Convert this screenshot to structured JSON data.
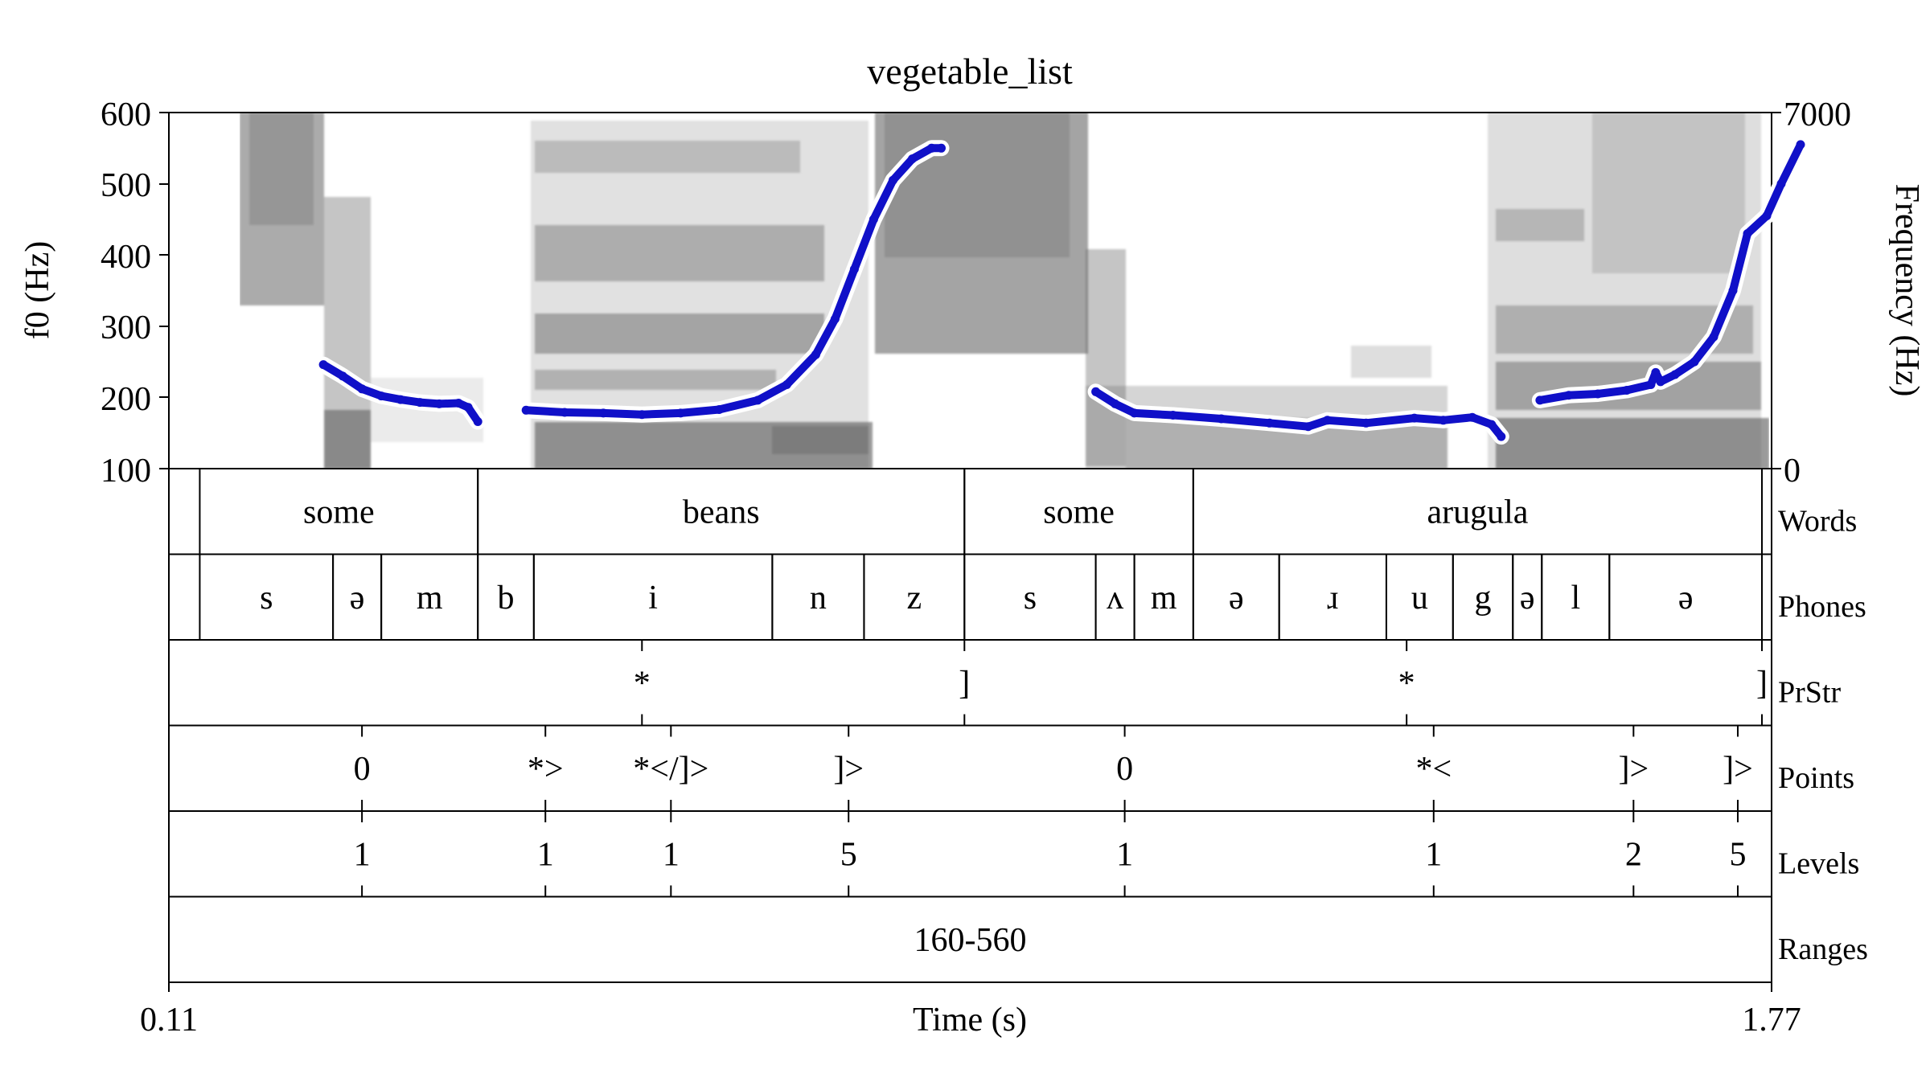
{
  "title": "vegetable_list",
  "left_axis": {
    "label": "f0 (Hz)",
    "min": 100,
    "max": 600,
    "ticks": [
      "100",
      "200",
      "300",
      "400",
      "500",
      "600"
    ]
  },
  "right_axis": {
    "label": "Frequency (Hz)",
    "min": 0,
    "max": 7000,
    "ticks": [
      "0",
      "7000"
    ]
  },
  "x_axis": {
    "label": "Time (s)",
    "start": 0.11,
    "end": 1.77,
    "start_label": "0.11",
    "end_label": "1.77"
  },
  "colors": {
    "f0_line": "#1010c8",
    "f0_halo": "#ffffff",
    "spectrogram": "#000000",
    "frame": "#000000"
  },
  "tiers": [
    {
      "name": "Words",
      "type": "interval",
      "intervals": [
        {
          "label": "some",
          "start": 0.142,
          "end": 0.43
        },
        {
          "label": "beans",
          "start": 0.43,
          "end": 0.934
        },
        {
          "label": "some",
          "start": 0.934,
          "end": 1.171
        },
        {
          "label": "arugula",
          "start": 1.171,
          "end": 1.76
        }
      ]
    },
    {
      "name": "Phones",
      "type": "interval",
      "intervals": [
        {
          "label": "s",
          "start": 0.142,
          "end": 0.28
        },
        {
          "label": "ə",
          "start": 0.28,
          "end": 0.33
        },
        {
          "label": "m",
          "start": 0.33,
          "end": 0.43
        },
        {
          "label": "b",
          "start": 0.43,
          "end": 0.488
        },
        {
          "label": "i",
          "start": 0.488,
          "end": 0.735
        },
        {
          "label": "n",
          "start": 0.735,
          "end": 0.83
        },
        {
          "label": "z",
          "start": 0.83,
          "end": 0.934
        },
        {
          "label": "s",
          "start": 0.934,
          "end": 1.07
        },
        {
          "label": "ʌ",
          "start": 1.07,
          "end": 1.11
        },
        {
          "label": "m",
          "start": 1.11,
          "end": 1.171
        },
        {
          "label": "ə",
          "start": 1.171,
          "end": 1.26
        },
        {
          "label": "ɹ",
          "start": 1.26,
          "end": 1.371
        },
        {
          "label": "u",
          "start": 1.371,
          "end": 1.44
        },
        {
          "label": "g",
          "start": 1.44,
          "end": 1.502
        },
        {
          "label": "ə",
          "start": 1.502,
          "end": 1.532
        },
        {
          "label": "l",
          "start": 1.532,
          "end": 1.602
        },
        {
          "label": "ə",
          "start": 1.602,
          "end": 1.76
        }
      ]
    },
    {
      "name": "PrStr",
      "type": "point",
      "points": [
        {
          "label": "*",
          "time": 0.6
        },
        {
          "label": "]",
          "time": 0.934
        },
        {
          "label": "*",
          "time": 1.392
        },
        {
          "label": "]",
          "time": 1.76
        }
      ]
    },
    {
      "name": "Points",
      "type": "point",
      "points": [
        {
          "label": "0",
          "time": 0.31
        },
        {
          "label": "*>",
          "time": 0.5
        },
        {
          "label": "*</]>",
          "time": 0.63
        },
        {
          "label": "]>",
          "time": 0.814
        },
        {
          "label": "0",
          "time": 1.1
        },
        {
          "label": "*<",
          "time": 1.42
        },
        {
          "label": "]>",
          "time": 1.627
        },
        {
          "label": "]>",
          "time": 1.735
        }
      ]
    },
    {
      "name": "Levels",
      "type": "point",
      "points": [
        {
          "label": "1",
          "time": 0.31
        },
        {
          "label": "1",
          "time": 0.5
        },
        {
          "label": "1",
          "time": 0.63
        },
        {
          "label": "5",
          "time": 0.814
        },
        {
          "label": "1",
          "time": 1.1
        },
        {
          "label": "1",
          "time": 1.42
        },
        {
          "label": "2",
          "time": 1.627
        },
        {
          "label": "5",
          "time": 1.735
        }
      ]
    },
    {
      "name": "Ranges",
      "type": "interval",
      "intervals": [
        {
          "label": "160-560",
          "start": 0.11,
          "end": 1.77
        }
      ]
    }
  ],
  "chart_data": {
    "type": "line",
    "title": "vegetable_list",
    "xlabel": "Time (s)",
    "ylabel": "f0 (Hz)",
    "y2label": "Frequency (Hz)",
    "xlim": [
      0.11,
      1.77
    ],
    "ylim": [
      100,
      600
    ],
    "y2lim": [
      0,
      7000
    ],
    "grid": false,
    "series": [
      {
        "segments": [
          [
            [
              0.27,
              246
            ],
            [
              0.29,
              230
            ],
            [
              0.31,
              212
            ],
            [
              0.33,
              202
            ],
            [
              0.35,
              197
            ],
            [
              0.37,
              193
            ],
            [
              0.39,
              191
            ],
            [
              0.41,
              192
            ],
            [
              0.42,
              186
            ],
            [
              0.43,
              166
            ]
          ],
          [
            [
              0.48,
              182
            ],
            [
              0.52,
              179
            ],
            [
              0.56,
              178
            ],
            [
              0.6,
              176
            ],
            [
              0.64,
              178
            ],
            [
              0.68,
              183
            ],
            [
              0.72,
              196
            ],
            [
              0.75,
              218
            ],
            [
              0.78,
              260
            ],
            [
              0.8,
              310
            ],
            [
              0.82,
              380
            ],
            [
              0.84,
              450
            ],
            [
              0.86,
              505
            ],
            [
              0.88,
              535
            ],
            [
              0.9,
              550
            ],
            [
              0.91,
              550
            ]
          ],
          [
            [
              1.07,
              208
            ],
            [
              1.09,
              191
            ],
            [
              1.11,
              178
            ],
            [
              1.15,
              175
            ],
            [
              1.2,
              170
            ],
            [
              1.25,
              164
            ],
            [
              1.29,
              159
            ],
            [
              1.31,
              168
            ],
            [
              1.35,
              164
            ],
            [
              1.4,
              171
            ],
            [
              1.43,
              168
            ],
            [
              1.46,
              172
            ],
            [
              1.48,
              162
            ],
            [
              1.49,
              145
            ]
          ],
          [
            [
              1.53,
              196
            ],
            [
              1.56,
              203
            ],
            [
              1.59,
              205
            ],
            [
              1.62,
              210
            ],
            [
              1.645,
              218
            ],
            [
              1.65,
              235
            ],
            [
              1.655,
              222
            ],
            [
              1.67,
              232
            ],
            [
              1.69,
              250
            ],
            [
              1.71,
              285
            ],
            [
              1.73,
              350
            ],
            [
              1.745,
              430
            ],
            [
              1.765,
              455
            ],
            [
              1.78,
              500
            ],
            [
              1.8,
              555
            ]
          ]
        ]
      }
    ]
  }
}
